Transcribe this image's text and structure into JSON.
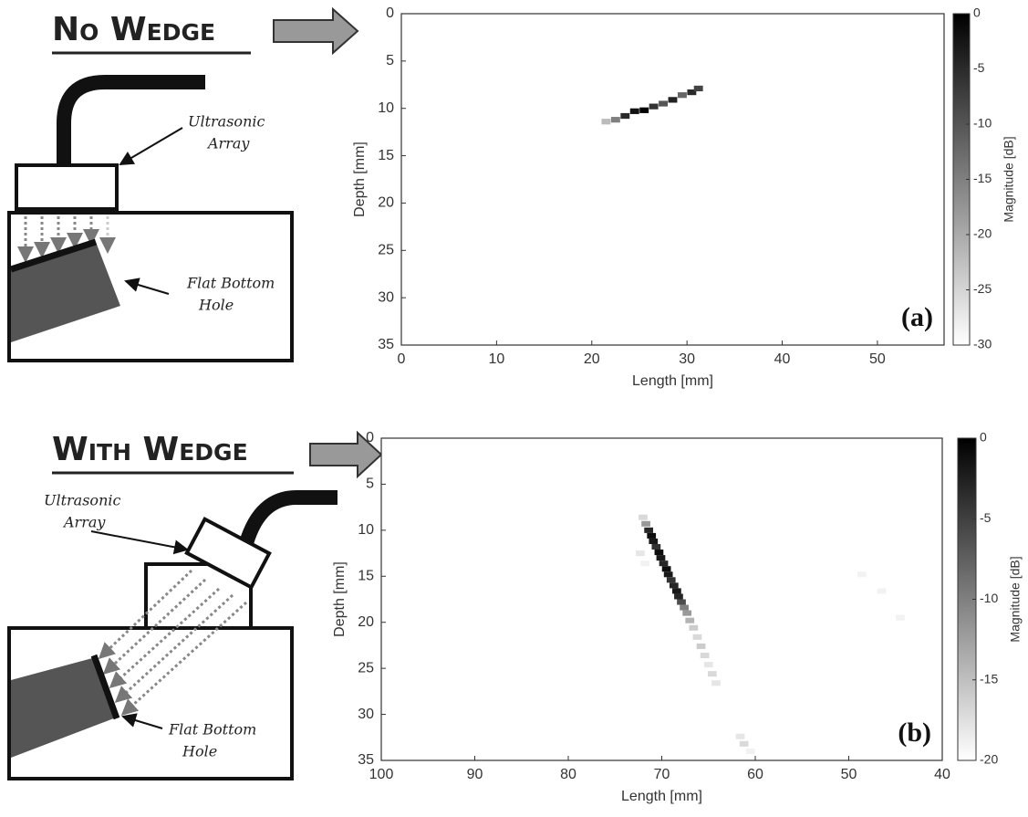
{
  "diagrams": [
    {
      "title": "No Wedge",
      "array_label": [
        "Ultrasonic",
        "Array"
      ],
      "hole_label": [
        "Flat Bottom",
        "Hole"
      ]
    },
    {
      "title": "With Wedge",
      "array_label": [
        "Ultrasonic",
        "Array"
      ],
      "hole_label": [
        "Flat Bottom",
        "Hole"
      ]
    }
  ],
  "chart_data": [
    {
      "type": "heatmap",
      "panel_label": "(a)",
      "x_label": "Length [mm]",
      "y_label": "Depth [mm]",
      "colorbar_label": "Magnitude [dB]",
      "xlim": [
        0,
        57
      ],
      "xticks": [
        0,
        10,
        20,
        30,
        40,
        50
      ],
      "ylim": [
        0,
        35
      ],
      "yticks": [
        0,
        5,
        10,
        15,
        20,
        25,
        30,
        35
      ],
      "y_inverted": true,
      "clim": [
        -30,
        0
      ],
      "cticks": [
        0,
        -5,
        -10,
        -15,
        -20,
        -25,
        -30
      ],
      "x": [
        21.5,
        22.5,
        23.5,
        24.5,
        25.5,
        26.5,
        27.5,
        28.5,
        29.5,
        30.5,
        31.2
      ],
      "y": [
        11.4,
        11.2,
        10.8,
        10.3,
        10.2,
        9.8,
        9.5,
        9.1,
        8.6,
        8.3,
        7.9
      ],
      "values": [
        -22,
        -15,
        -5,
        -2,
        0,
        -6,
        -10,
        -4,
        -12,
        -5,
        -8
      ]
    },
    {
      "type": "heatmap",
      "panel_label": "(b)",
      "x_label": "Length [mm]",
      "y_label": "Depth [mm]",
      "colorbar_label": "Magnitude [dB]",
      "xlim": [
        100,
        40
      ],
      "xticks": [
        100,
        90,
        80,
        70,
        60,
        50,
        40
      ],
      "ylim": [
        0,
        35
      ],
      "yticks": [
        0,
        5,
        10,
        15,
        20,
        25,
        30,
        35
      ],
      "y_inverted": true,
      "clim": [
        -20,
        0
      ],
      "cticks": [
        0,
        -5,
        -10,
        -15,
        -20
      ],
      "x": [
        72,
        71.7,
        71.4,
        71.1,
        70.9,
        70.6,
        70.3,
        70.1,
        69.8,
        69.5,
        69.3,
        69,
        68.7,
        68.4,
        68.2,
        67.9,
        67.6,
        67.3,
        67,
        66.6,
        66.2,
        65.8,
        65.4,
        65,
        64.6,
        64.2,
        61.6,
        61.2,
        60.5,
        72.3,
        71.8,
        48.6,
        46.5,
        44.5
      ],
      "y": [
        8.6,
        9.3,
        10,
        10.6,
        11.2,
        11.8,
        12.4,
        13,
        13.6,
        14.2,
        14.8,
        15.4,
        16,
        16.6,
        17.2,
        17.8,
        18.4,
        19,
        19.8,
        20.6,
        21.6,
        22.6,
        23.6,
        24.6,
        25.6,
        26.6,
        32.4,
        33.2,
        34,
        12.5,
        13.6,
        14.8,
        16.6,
        19.5
      ],
      "values": [
        -17,
        -12,
        -3,
        -1,
        -2,
        -4,
        -1,
        -2,
        -3,
        -1,
        -2,
        -4,
        -3,
        -2,
        -3,
        -6,
        -10,
        -12,
        -14,
        -16,
        -17,
        -16,
        -17,
        -18,
        -17,
        -18,
        -18,
        -17,
        -19,
        -18,
        -19,
        -19,
        -19,
        -19
      ]
    }
  ]
}
